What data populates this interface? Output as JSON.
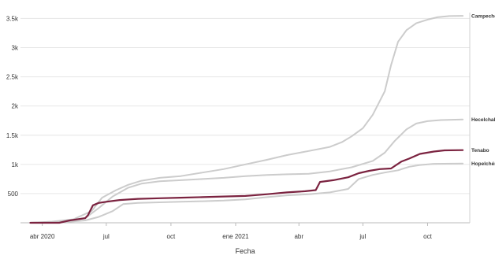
{
  "chart_data": {
    "type": "line",
    "title": "",
    "xlabel": "Fecha",
    "ylabel": "",
    "xlim": [
      "2020-03-01",
      "2021-11-30"
    ],
    "ylim": [
      0,
      3600
    ],
    "grid": true,
    "x_ticks": [
      {
        "date": "2020-04-01",
        "label": "abr 2020"
      },
      {
        "date": "2020-07-01",
        "label": "jul"
      },
      {
        "date": "2020-10-01",
        "label": "oct"
      },
      {
        "date": "2021-01-01",
        "label": "ene 2021"
      },
      {
        "date": "2021-04-01",
        "label": "abr"
      },
      {
        "date": "2021-07-01",
        "label": "jul"
      },
      {
        "date": "2021-10-01",
        "label": "oct"
      }
    ],
    "y_ticks": [
      {
        "value": 500,
        "label": "500"
      },
      {
        "value": 1000,
        "label": "1k"
      },
      {
        "value": 1500,
        "label": "1.5k"
      },
      {
        "value": 2000,
        "label": "2k"
      },
      {
        "value": 2500,
        "label": "2.5k"
      },
      {
        "value": 3000,
        "label": "3k"
      },
      {
        "value": 3500,
        "label": "3.5k"
      }
    ],
    "colors": {
      "highlight": "#7b2340",
      "other": "#cccccc",
      "grid": "#e6e6e6",
      "axis": "#bbbbbb"
    },
    "series": [
      {
        "name": "Campeche",
        "highlight": false,
        "points": [
          [
            "2020-03-15",
            0
          ],
          [
            "2020-04-15",
            20
          ],
          [
            "2020-05-15",
            60
          ],
          [
            "2020-06-10",
            200
          ],
          [
            "2020-06-25",
            430
          ],
          [
            "2020-07-15",
            560
          ],
          [
            "2020-08-01",
            650
          ],
          [
            "2020-08-20",
            720
          ],
          [
            "2020-09-15",
            770
          ],
          [
            "2020-10-15",
            800
          ],
          [
            "2020-11-15",
            860
          ],
          [
            "2020-12-15",
            920
          ],
          [
            "2021-01-15",
            1000
          ],
          [
            "2021-02-15",
            1080
          ],
          [
            "2021-03-15",
            1160
          ],
          [
            "2021-04-15",
            1230
          ],
          [
            "2021-05-15",
            1300
          ],
          [
            "2021-06-01",
            1380
          ],
          [
            "2021-06-15",
            1480
          ],
          [
            "2021-07-01",
            1620
          ],
          [
            "2021-07-15",
            1850
          ],
          [
            "2021-08-01",
            2250
          ],
          [
            "2021-08-10",
            2700
          ],
          [
            "2021-08-20",
            3100
          ],
          [
            "2021-09-01",
            3300
          ],
          [
            "2021-09-15",
            3420
          ],
          [
            "2021-10-01",
            3480
          ],
          [
            "2021-10-15",
            3520
          ],
          [
            "2021-11-01",
            3540
          ],
          [
            "2021-11-20",
            3545
          ]
        ]
      },
      {
        "name": "Hecelchak",
        "highlight": false,
        "points": [
          [
            "2020-03-15",
            0
          ],
          [
            "2020-05-01",
            20
          ],
          [
            "2020-06-01",
            80
          ],
          [
            "2020-06-20",
            250
          ],
          [
            "2020-07-10",
            450
          ],
          [
            "2020-08-01",
            600
          ],
          [
            "2020-08-20",
            670
          ],
          [
            "2020-09-15",
            710
          ],
          [
            "2020-10-15",
            730
          ],
          [
            "2020-11-15",
            750
          ],
          [
            "2020-12-15",
            770
          ],
          [
            "2021-01-15",
            800
          ],
          [
            "2021-02-15",
            820
          ],
          [
            "2021-03-15",
            830
          ],
          [
            "2021-04-15",
            840
          ],
          [
            "2021-05-15",
            880
          ],
          [
            "2021-06-15",
            950
          ],
          [
            "2021-07-15",
            1060
          ],
          [
            "2021-08-01",
            1200
          ],
          [
            "2021-08-15",
            1400
          ],
          [
            "2021-09-01",
            1600
          ],
          [
            "2021-09-15",
            1700
          ],
          [
            "2021-10-01",
            1740
          ],
          [
            "2021-10-20",
            1760
          ],
          [
            "2021-11-20",
            1770
          ]
        ]
      },
      {
        "name": "Tenabo",
        "highlight": true,
        "points": [
          [
            "2020-03-15",
            0
          ],
          [
            "2020-04-25",
            0
          ],
          [
            "2020-05-10",
            40
          ],
          [
            "2020-06-01",
            80
          ],
          [
            "2020-06-05",
            130
          ],
          [
            "2020-06-12",
            300
          ],
          [
            "2020-06-20",
            340
          ],
          [
            "2020-07-01",
            360
          ],
          [
            "2020-07-20",
            390
          ],
          [
            "2020-08-15",
            410
          ],
          [
            "2020-09-15",
            420
          ],
          [
            "2020-10-15",
            430
          ],
          [
            "2020-11-15",
            440
          ],
          [
            "2020-12-15",
            450
          ],
          [
            "2021-01-15",
            460
          ],
          [
            "2021-02-15",
            490
          ],
          [
            "2021-03-15",
            520
          ],
          [
            "2021-04-10",
            540
          ],
          [
            "2021-04-25",
            560
          ],
          [
            "2021-05-01",
            700
          ],
          [
            "2021-05-20",
            730
          ],
          [
            "2021-06-10",
            780
          ],
          [
            "2021-06-25",
            850
          ],
          [
            "2021-07-10",
            890
          ],
          [
            "2021-07-25",
            920
          ],
          [
            "2021-08-10",
            930
          ],
          [
            "2021-08-25",
            1050
          ],
          [
            "2021-09-05",
            1100
          ],
          [
            "2021-09-20",
            1180
          ],
          [
            "2021-10-10",
            1220
          ],
          [
            "2021-10-25",
            1240
          ],
          [
            "2021-11-20",
            1245
          ]
        ]
      },
      {
        "name": "Hopelchén",
        "highlight": false,
        "points": [
          [
            "2020-03-15",
            0
          ],
          [
            "2020-05-01",
            10
          ],
          [
            "2020-06-01",
            40
          ],
          [
            "2020-06-20",
            100
          ],
          [
            "2020-07-10",
            200
          ],
          [
            "2020-07-25",
            320
          ],
          [
            "2020-08-15",
            340
          ],
          [
            "2020-09-15",
            350
          ],
          [
            "2020-10-15",
            360
          ],
          [
            "2020-11-15",
            370
          ],
          [
            "2020-12-15",
            380
          ],
          [
            "2021-01-15",
            400
          ],
          [
            "2021-02-15",
            440
          ],
          [
            "2021-03-15",
            470
          ],
          [
            "2021-04-15",
            490
          ],
          [
            "2021-05-15",
            520
          ],
          [
            "2021-06-10",
            580
          ],
          [
            "2021-06-25",
            750
          ],
          [
            "2021-07-15",
            820
          ],
          [
            "2021-08-01",
            860
          ],
          [
            "2021-08-20",
            900
          ],
          [
            "2021-09-05",
            960
          ],
          [
            "2021-09-20",
            990
          ],
          [
            "2021-10-10",
            1010
          ],
          [
            "2021-11-20",
            1015
          ]
        ]
      }
    ]
  }
}
